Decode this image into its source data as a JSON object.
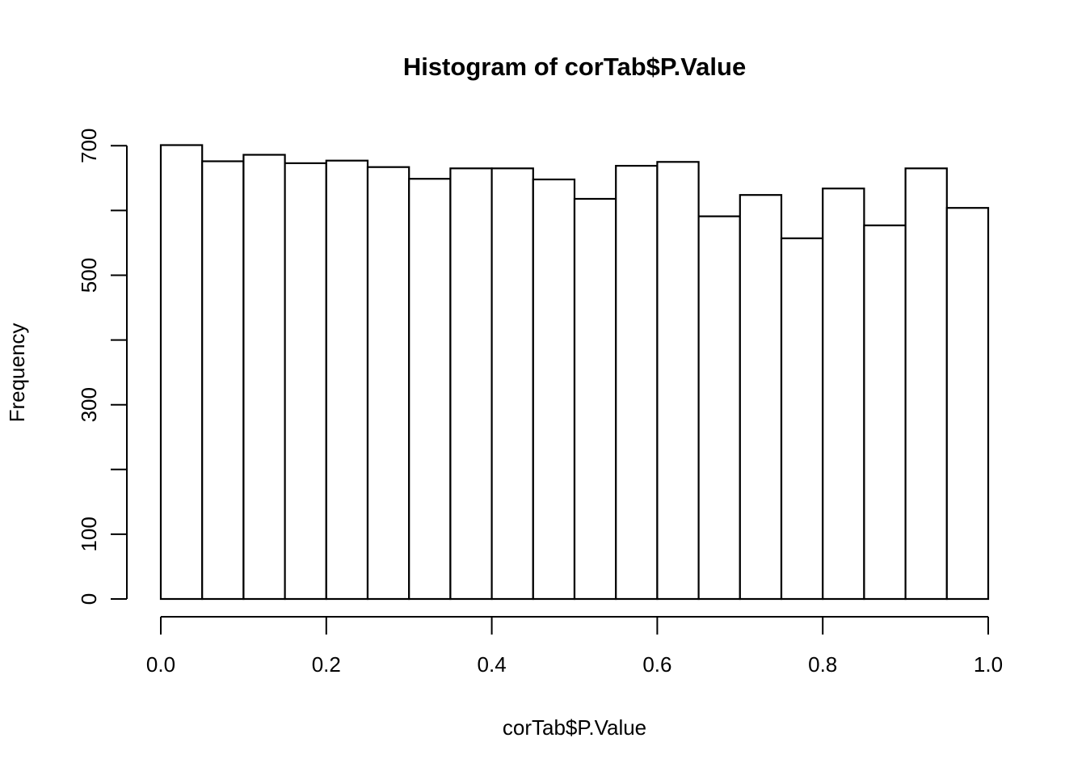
{
  "figure": {
    "background_color": "#ffffff",
    "foreground_color": "#000000"
  },
  "chart_data": {
    "type": "bar",
    "subtype": "histogram",
    "title": "Histogram of corTab$P.Value",
    "xlabel": "corTab$P.Value",
    "ylabel": "Frequency",
    "bins": {
      "start": 0.0,
      "end": 1.0,
      "width": 0.05
    },
    "categories": [
      "0.00-0.05",
      "0.05-0.10",
      "0.10-0.15",
      "0.15-0.20",
      "0.20-0.25",
      "0.25-0.30",
      "0.30-0.35",
      "0.35-0.40",
      "0.40-0.45",
      "0.45-0.50",
      "0.50-0.55",
      "0.55-0.60",
      "0.60-0.65",
      "0.65-0.70",
      "0.70-0.75",
      "0.75-0.80",
      "0.80-0.85",
      "0.85-0.90",
      "0.90-0.95",
      "0.95-1.00"
    ],
    "values": [
      701,
      676,
      686,
      673,
      677,
      667,
      649,
      665,
      665,
      648,
      618,
      669,
      675,
      591,
      624,
      557,
      634,
      577,
      665,
      604
    ],
    "xlim": [
      0.0,
      1.0
    ],
    "ylim": [
      0,
      700
    ],
    "x_ticks": {
      "values": [
        0.0,
        0.2,
        0.4,
        0.6,
        0.8,
        1.0
      ],
      "labels": [
        "0.0",
        "0.2",
        "0.4",
        "0.6",
        "0.8",
        "1.0"
      ]
    },
    "y_ticks": {
      "values": [
        0,
        100,
        200,
        300,
        400,
        500,
        600,
        700
      ],
      "labels": [
        "0",
        "100",
        "",
        "300",
        "",
        "500",
        "",
        "700"
      ]
    },
    "grid": false,
    "legend_position": "none",
    "bar_fill_color": "#ffffff",
    "bar_stroke_color": "#000000",
    "axis_color": "#000000"
  }
}
